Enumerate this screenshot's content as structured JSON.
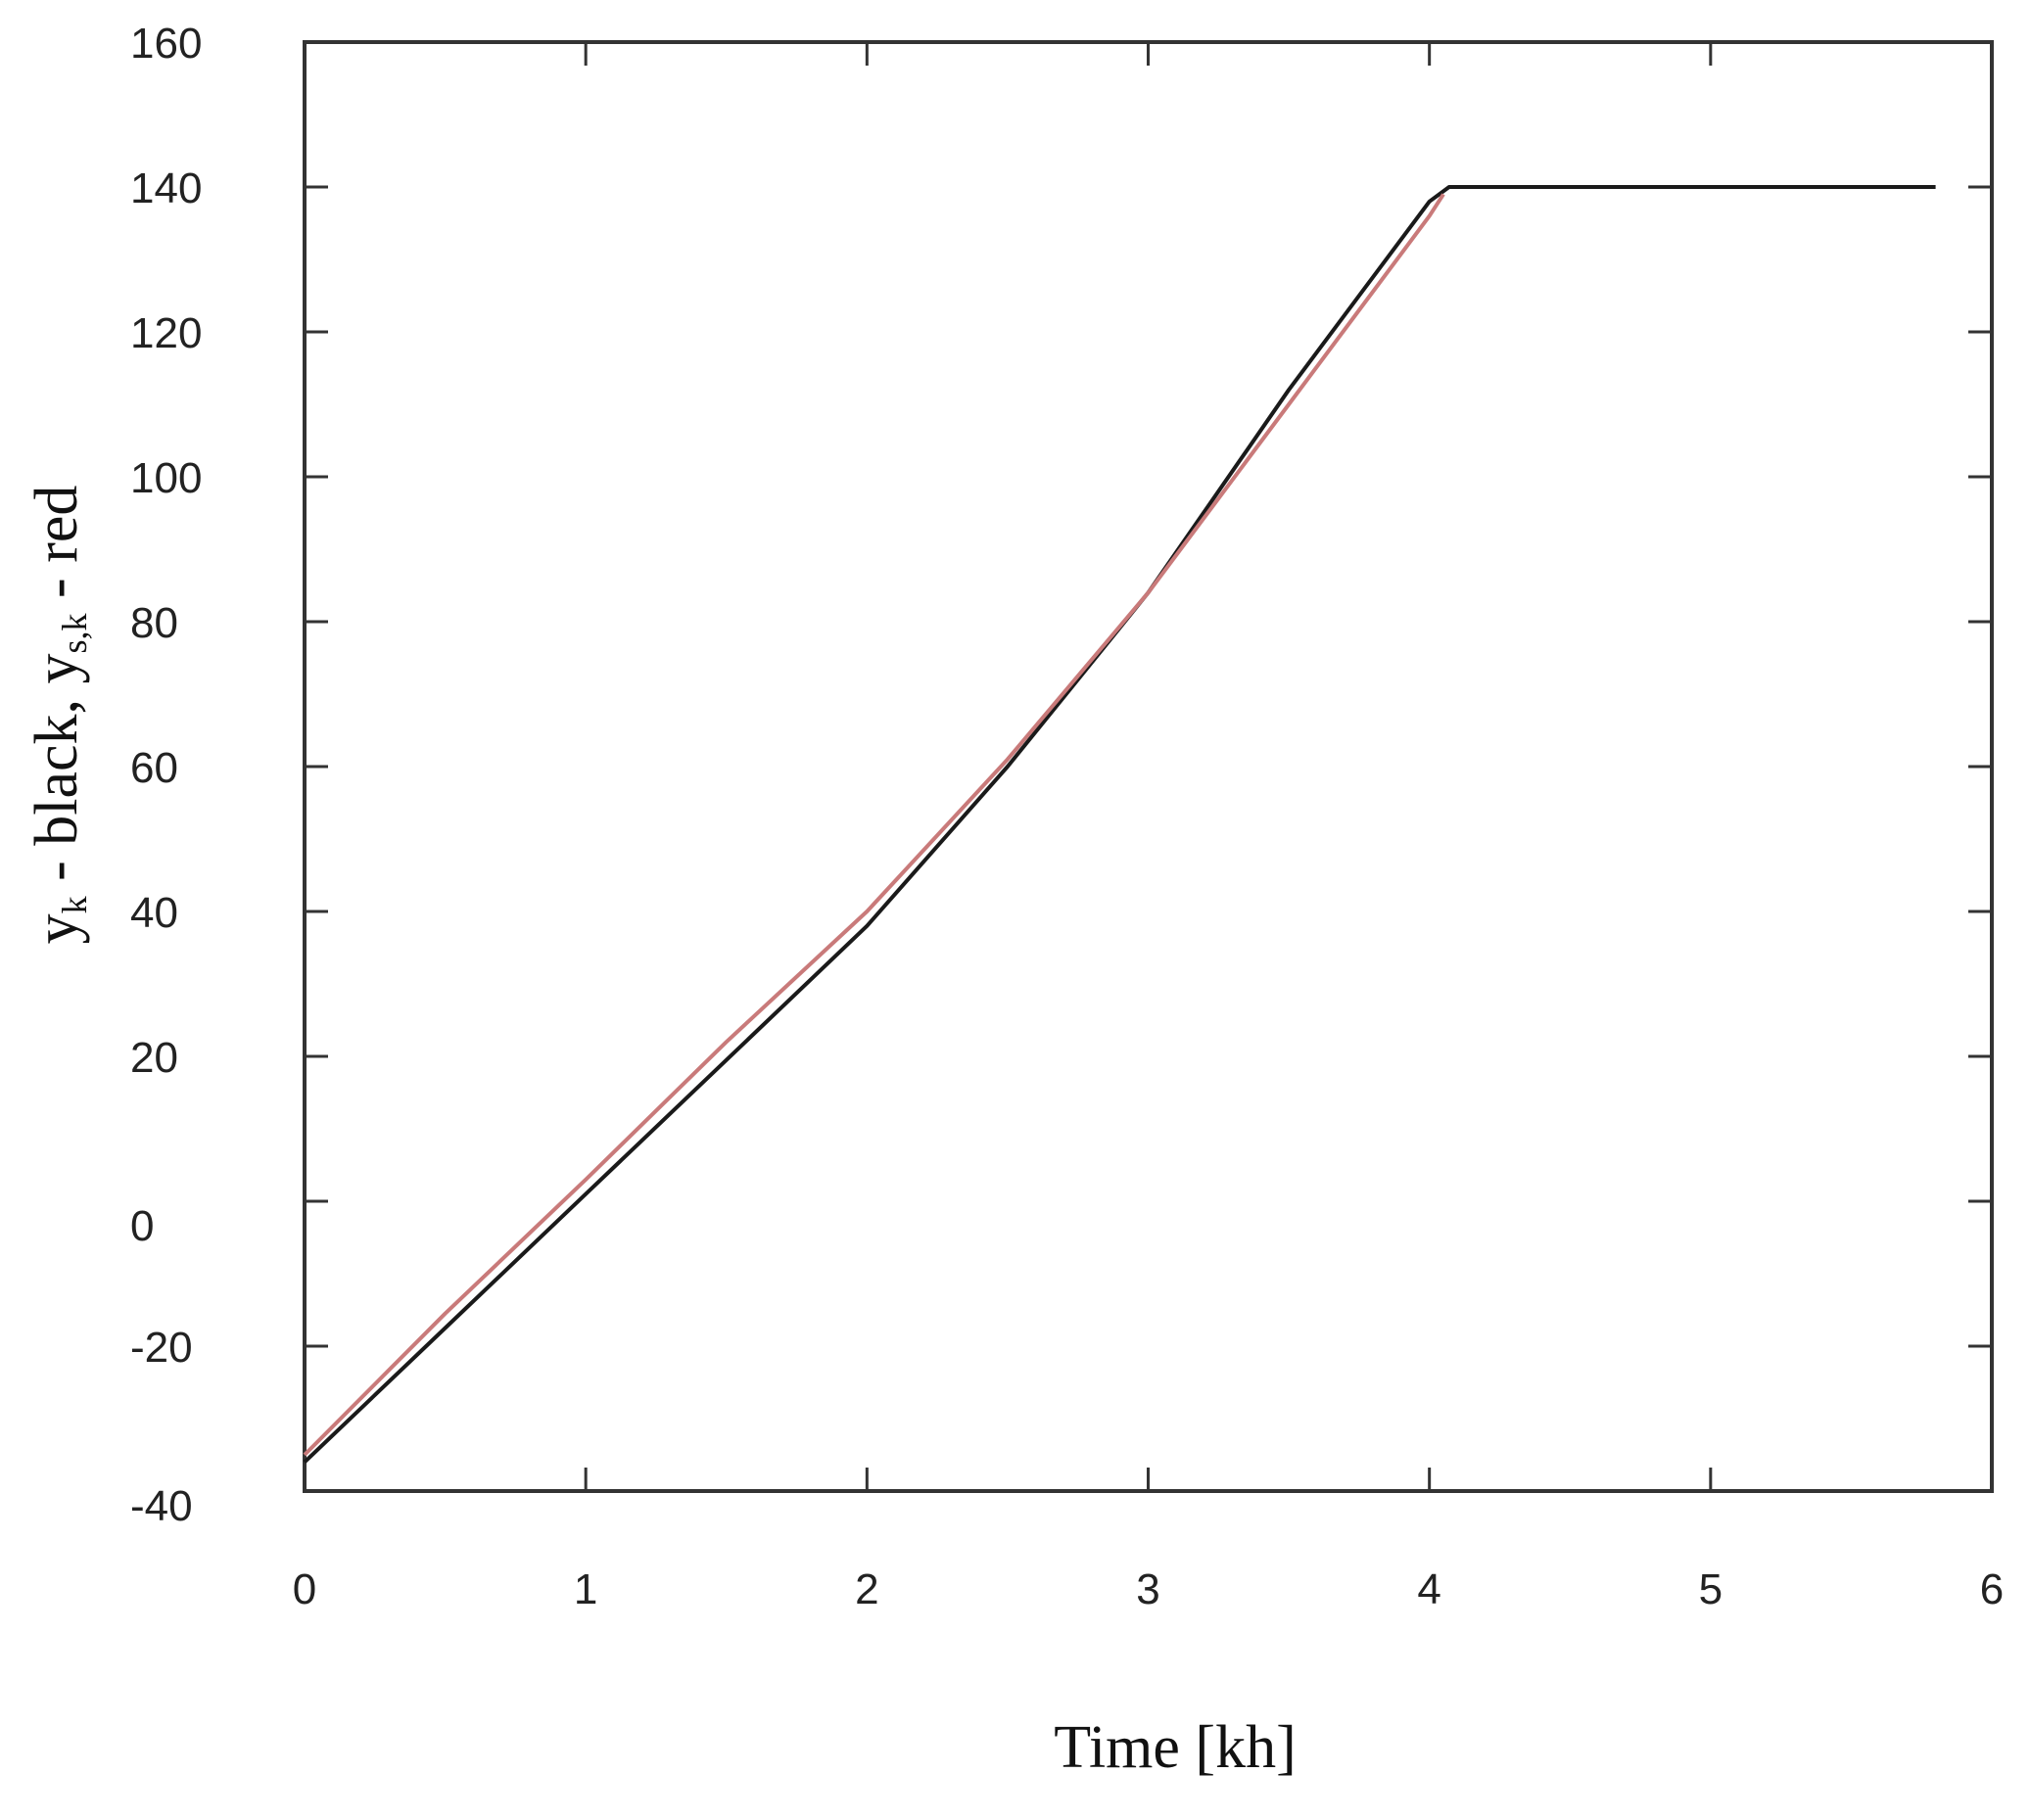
{
  "chart_data": {
    "type": "line",
    "title": "",
    "xlabel": "Time [kh]",
    "ylabel": {
      "main": "y",
      "sub1": "k",
      "mid": " - black, y",
      "sub2": "s,k",
      "end": "  - red"
    },
    "xlim": [
      0,
      6
    ],
    "ylim": [
      -40,
      160
    ],
    "xticks": [
      0,
      1,
      2,
      3,
      4,
      5,
      6
    ],
    "yticks": [
      -40,
      -20,
      0,
      20,
      40,
      60,
      80,
      100,
      120,
      140,
      160
    ],
    "xtick_labels": [
      "0",
      "1",
      "2",
      "3",
      "4",
      "5",
      "6"
    ],
    "ytick_labels": [
      "-40",
      "-20",
      "0",
      "20",
      "40",
      "60",
      "80",
      "100",
      "120",
      "140",
      "160"
    ],
    "grid": false,
    "legend": "none",
    "series": [
      {
        "color": "#1a1a1a",
        "x": [
          0,
          0.5,
          1,
          1.5,
          2,
          2.5,
          3,
          3.5,
          4,
          4.07,
          5.8
        ],
        "y": [
          -36,
          -17.5,
          1,
          19.5,
          38,
          60,
          84,
          112,
          138,
          140,
          140
        ]
      },
      {
        "color": "#c97a7a",
        "x": [
          0,
          0.5,
          1,
          1.5,
          2,
          2.5,
          3,
          3.5,
          4,
          4.05
        ],
        "y": [
          -35,
          -15.5,
          3,
          22,
          40,
          61,
          84,
          110,
          136,
          139
        ]
      }
    ]
  }
}
